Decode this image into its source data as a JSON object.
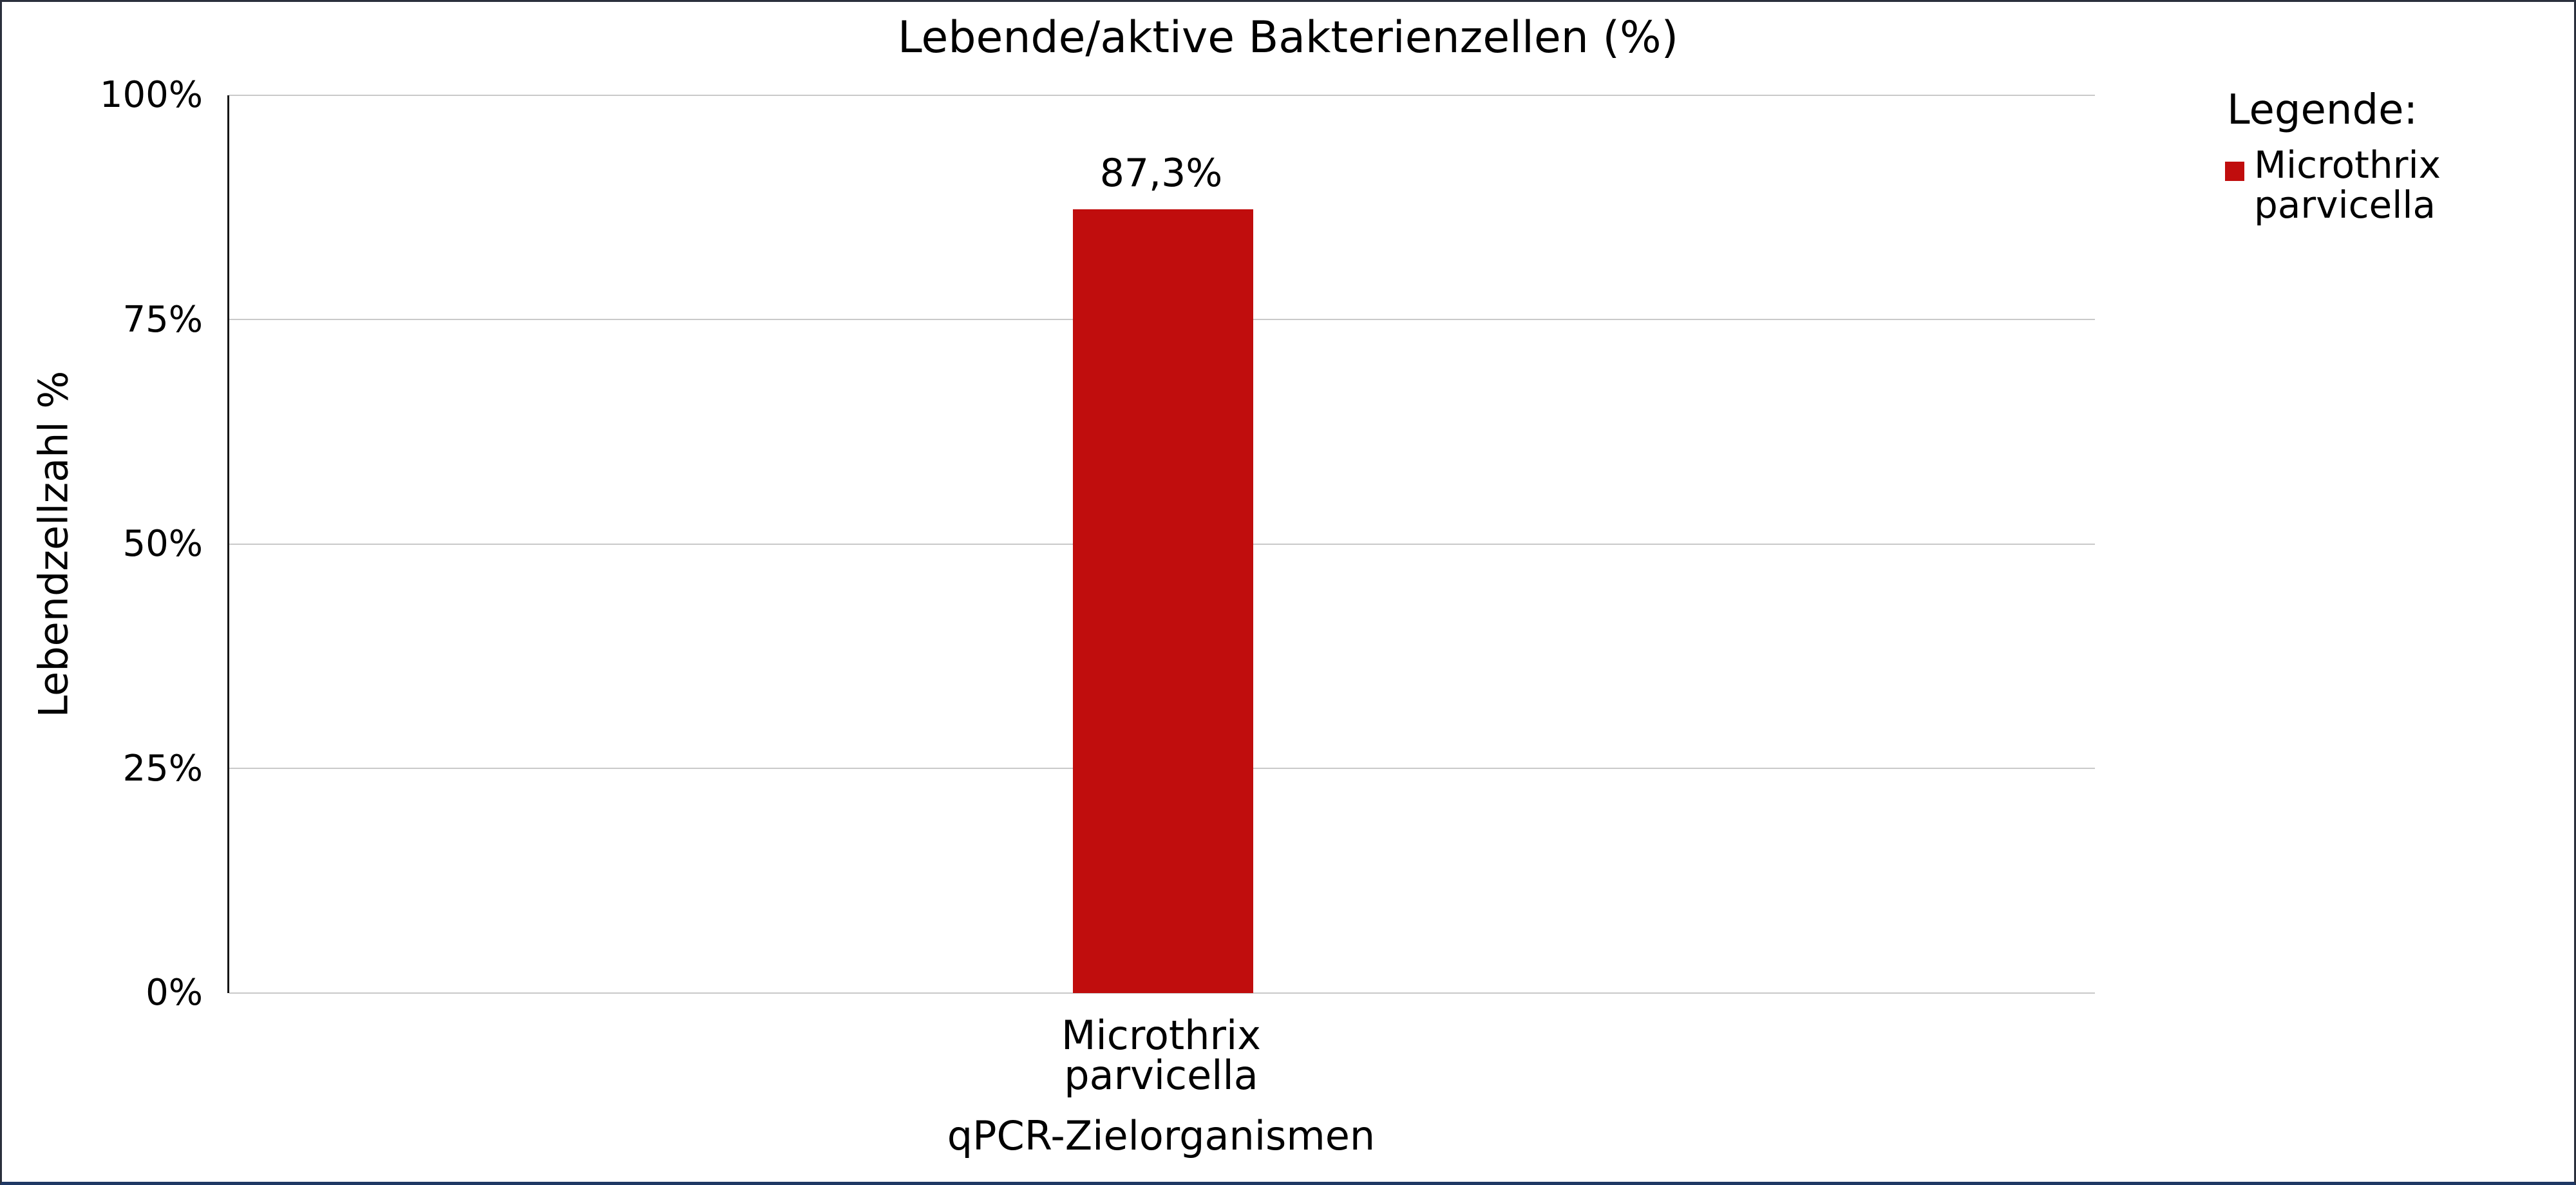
{
  "chart": {
    "title": "Lebende/aktive Bakterienzellen (%)"
  },
  "chart_data": {
    "type": "bar",
    "title": "Lebende/aktive Bakterienzellen (%)",
    "categories": [
      "Microthrix parvicella"
    ],
    "category_lines": [
      "Microthrix",
      "parvicella"
    ],
    "values": [
      87.3
    ],
    "value_labels": [
      "87,3%"
    ],
    "xlabel": "qPCR-Zielorganismen",
    "ylabel": "Lebendzellzahl %",
    "ylim": [
      0,
      100
    ],
    "yticks": [
      {
        "value": 0,
        "label": "0%"
      },
      {
        "value": 25,
        "label": "25%"
      },
      {
        "value": 50,
        "label": "50%"
      },
      {
        "value": 75,
        "label": "75%"
      },
      {
        "value": 100,
        "label": "100%"
      }
    ],
    "grid": true,
    "bar_color": "#c00d0d",
    "gridline_color": "#c9c9c9",
    "legend_position": "right"
  },
  "legend": {
    "title": "Legende:",
    "entries": [
      {
        "label": "Microthrix parvicella",
        "label_lines": [
          "Microthrix",
          "parvicella"
        ],
        "color": "#c00d0d"
      }
    ]
  }
}
